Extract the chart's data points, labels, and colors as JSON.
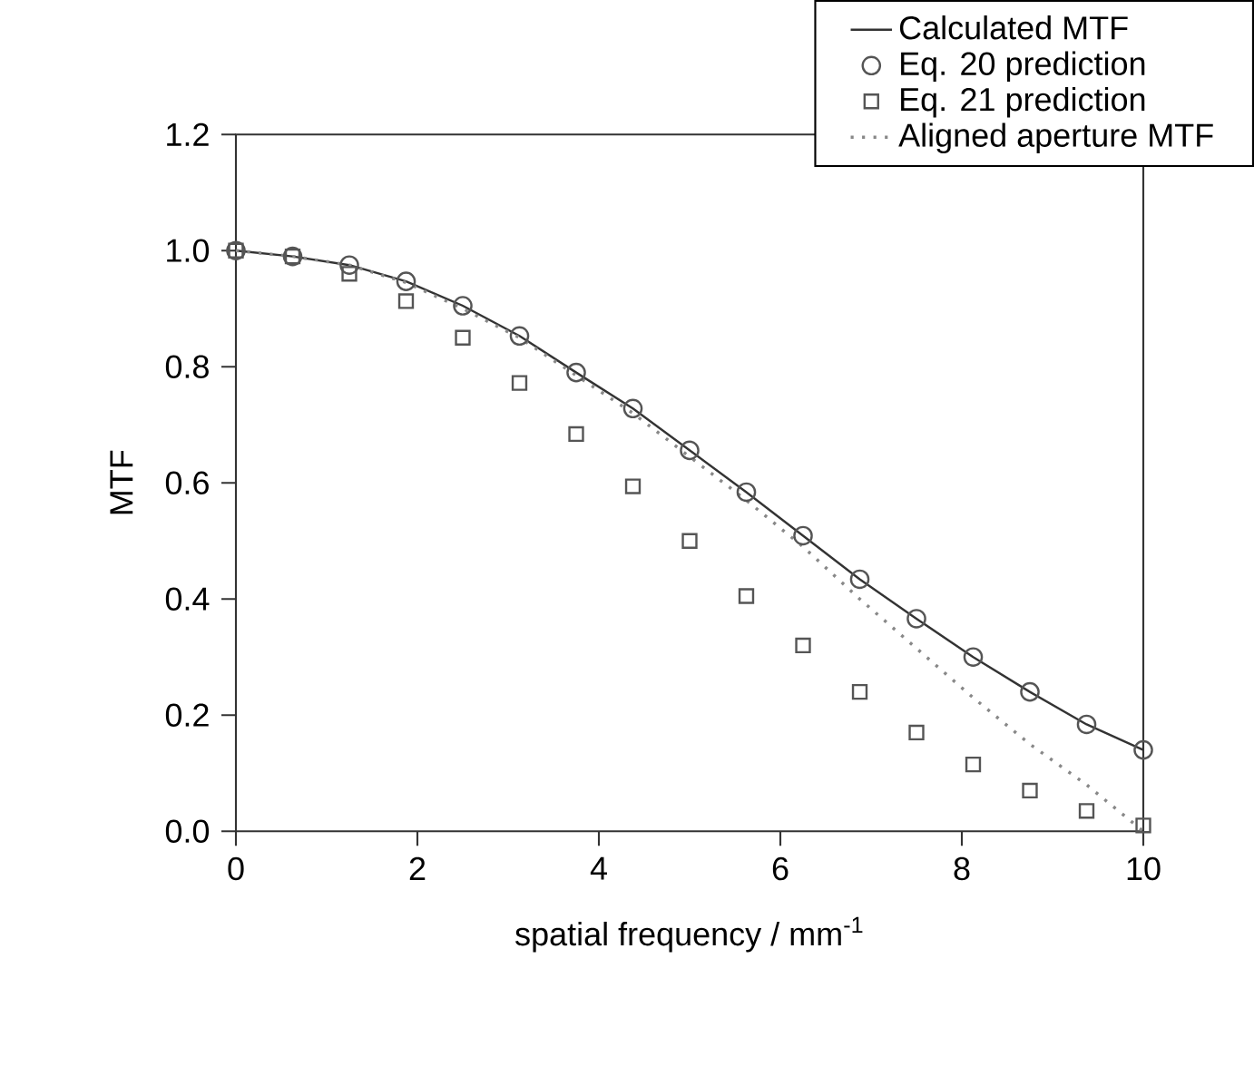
{
  "chart_data": {
    "type": "line",
    "xlabel": "spatial frequency / mm$^{-1}$",
    "ylabel": "MTF",
    "xlim": [
      0,
      10
    ],
    "ylim": [
      0,
      1.2
    ],
    "xticks": [
      0,
      2,
      4,
      6,
      8,
      10
    ],
    "yticks": [
      {
        "value": 0,
        "label": "0.0"
      },
      {
        "value": 0.2,
        "label": "0.2"
      },
      {
        "value": 0.4,
        "label": "0.4"
      },
      {
        "value": 0.6,
        "label": "0.6"
      },
      {
        "value": 0.8,
        "label": "0.8"
      },
      {
        "value": 1.0,
        "label": "1.0"
      },
      {
        "value": 1.2,
        "label": "1.2"
      }
    ],
    "grid": false,
    "legend": "top right",
    "x": [
      0,
      0.625,
      1.25,
      1.875,
      2.5,
      3.125,
      3.75,
      4.375,
      5,
      5.625,
      6.25,
      6.875,
      7.5,
      8.125,
      8.75,
      9.375,
      10
    ],
    "series": [
      {
        "name": "Calculated MTF",
        "type": "line",
        "color": "#333333",
        "marker": "none",
        "line_style": "solid",
        "values": [
          1.0,
          0.99,
          0.975,
          0.947,
          0.905,
          0.853,
          0.79,
          0.728,
          0.656,
          0.584,
          0.509,
          0.434,
          0.366,
          0.3,
          0.24,
          0.184,
          0.14
        ]
      },
      {
        "name": "Eq. 20 prediction",
        "type": "scatter",
        "color": "#555555",
        "marker": "circle",
        "values": [
          1.0,
          0.99,
          0.975,
          0.947,
          0.905,
          0.853,
          0.79,
          0.728,
          0.656,
          0.584,
          0.509,
          0.434,
          0.366,
          0.3,
          0.24,
          0.184,
          0.14
        ]
      },
      {
        "name": "Eq. 21 prediction",
        "type": "scatter",
        "color": "#555555",
        "marker": "square",
        "values": [
          1.0,
          0.99,
          0.96,
          0.913,
          0.85,
          0.772,
          0.684,
          0.594,
          0.5,
          0.405,
          0.32,
          0.24,
          0.17,
          0.115,
          0.07,
          0.035,
          0.01
        ]
      },
      {
        "name": "Aligned aperture MTF",
        "type": "line",
        "color": "#888888",
        "marker": "none",
        "line_style": "dotted",
        "values": [
          1.0,
          0.99,
          0.975,
          0.945,
          0.9,
          0.85,
          0.785,
          0.72,
          0.645,
          0.57,
          0.49,
          0.4,
          0.315,
          0.23,
          0.15,
          0.08,
          0.0
        ]
      }
    ]
  }
}
